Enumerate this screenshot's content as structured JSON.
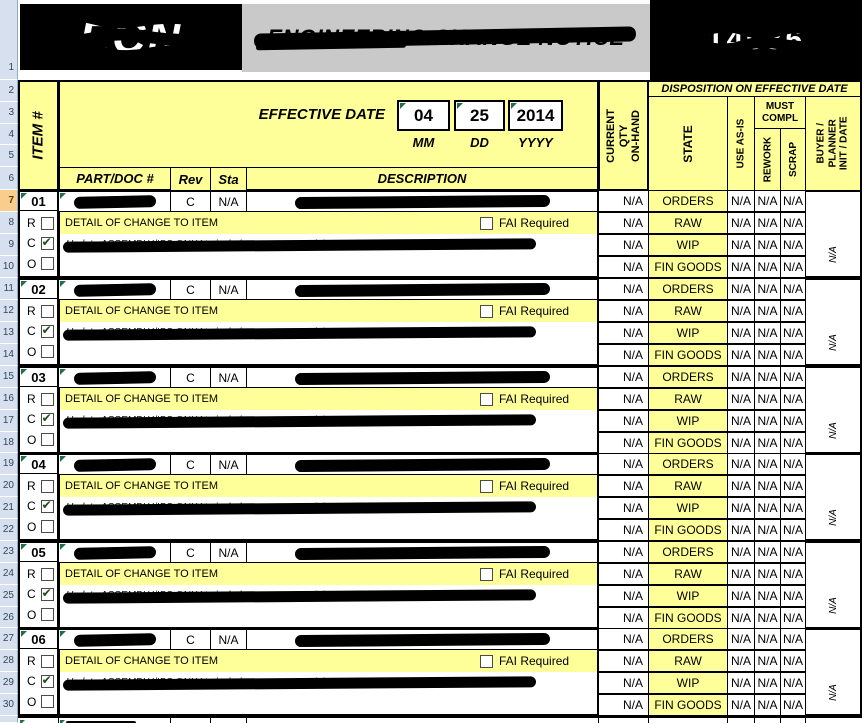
{
  "header": {
    "logo_ghost": "ECN",
    "title_ghost": "ENGINEERING CHANGE NOTICE",
    "number_ghost": "14036",
    "redacted": true
  },
  "form": {
    "item_col_label": "ITEM #",
    "effective_date_label": "EFFECTIVE DATE",
    "date": {
      "mm": "04",
      "dd": "25",
      "yyyy": "2014",
      "mm_label": "MM",
      "dd_label": "DD",
      "yyyy_label": "YYYY"
    },
    "columns": {
      "part": "PART/DOC #",
      "rev": "Rev",
      "sta": "Sta",
      "desc": "DESCRIPTION"
    },
    "disposition": {
      "title": "DISPOSITION ON EFFECTIVE DATE",
      "current_qty_line1": "CURRENT QTY",
      "current_qty_line2": "ON-HAND",
      "state": "STATE",
      "use_as_is": "USE AS-IS",
      "must_compl_line1": "MUST",
      "must_compl_line2": "COMPL",
      "rework": "REWORK",
      "scrap": "SCRAP",
      "buyer_line1": "BUYER /",
      "buyer_line2": "PLANNER",
      "buyer_line3": "INIT / DATE"
    }
  },
  "spreadsheet": {
    "row_numbers": [
      "1",
      "2",
      "3",
      "4",
      "5",
      "6",
      "7",
      "8",
      "9",
      "10",
      "11",
      "12",
      "13",
      "14",
      "15",
      "16",
      "17",
      "18",
      "19",
      "20",
      "21",
      "22",
      "23",
      "24",
      "25",
      "26",
      "27",
      "28",
      "29",
      "30"
    ],
    "active_row": "7"
  },
  "colors": {
    "form_yellow": "#FFFF99",
    "header_gray": "#C9C9C9",
    "row_header_blue": "#D6E0EE",
    "active_row_orange": "#F8CD8E",
    "error_triangle_green": "#1F7145"
  },
  "items": [
    {
      "num": "01",
      "rev": "C",
      "sta": "N/A",
      "detail_label": "DETAIL OF CHANGE TO ITEM",
      "fai_label": "FAI Required",
      "change_ghost": "Update ASSEMBLY/IPS ONLY to include a row to record the results of the in-process inspection",
      "rco": [
        {
          "label": "R",
          "checked": false
        },
        {
          "label": "C",
          "checked": true
        },
        {
          "label": "O",
          "checked": false
        }
      ],
      "rows": [
        {
          "qty": "N/A",
          "state": "ORDERS",
          "use": "N/A",
          "rework": "N/A",
          "scrap": "N/A"
        },
        {
          "qty": "N/A",
          "state": "RAW",
          "use": "N/A",
          "rework": "N/A",
          "scrap": "N/A"
        },
        {
          "qty": "N/A",
          "state": "WIP",
          "use": "N/A",
          "rework": "N/A",
          "scrap": "N/A"
        },
        {
          "qty": "N/A",
          "state": "FIN GOODS",
          "use": "N/A",
          "rework": "N/A",
          "scrap": "N/A"
        }
      ],
      "buyer": "N/A"
    },
    {
      "num": "02",
      "rev": "C",
      "sta": "N/A",
      "detail_label": "DETAIL OF CHANGE TO ITEM",
      "fai_label": "FAI Required",
      "change_ghost": "Update ASSEMBLY/IPS ONLY to include a row to record the results of the in-process inspection",
      "rco": [
        {
          "label": "R",
          "checked": false
        },
        {
          "label": "C",
          "checked": true
        },
        {
          "label": "O",
          "checked": false
        }
      ],
      "rows": [
        {
          "qty": "N/A",
          "state": "ORDERS",
          "use": "N/A",
          "rework": "N/A",
          "scrap": "N/A"
        },
        {
          "qty": "N/A",
          "state": "RAW",
          "use": "N/A",
          "rework": "N/A",
          "scrap": "N/A"
        },
        {
          "qty": "N/A",
          "state": "WIP",
          "use": "N/A",
          "rework": "N/A",
          "scrap": "N/A"
        },
        {
          "qty": "N/A",
          "state": "FIN GOODS",
          "use": "N/A",
          "rework": "N/A",
          "scrap": "N/A"
        }
      ],
      "buyer": "N/A"
    },
    {
      "num": "03",
      "rev": "C",
      "sta": "N/A",
      "detail_label": "DETAIL OF CHANGE TO ITEM",
      "fai_label": "FAI Required",
      "change_ghost": "Update ASSEMBLY/IPS ONLY to include a row to record the results of the in-process inspection",
      "rco": [
        {
          "label": "R",
          "checked": false
        },
        {
          "label": "C",
          "checked": true
        },
        {
          "label": "O",
          "checked": false
        }
      ],
      "rows": [
        {
          "qty": "N/A",
          "state": "ORDERS",
          "use": "N/A",
          "rework": "N/A",
          "scrap": "N/A"
        },
        {
          "qty": "N/A",
          "state": "RAW",
          "use": "N/A",
          "rework": "N/A",
          "scrap": "N/A"
        },
        {
          "qty": "N/A",
          "state": "WIP",
          "use": "N/A",
          "rework": "N/A",
          "scrap": "N/A"
        },
        {
          "qty": "N/A",
          "state": "FIN GOODS",
          "use": "N/A",
          "rework": "N/A",
          "scrap": "N/A"
        }
      ],
      "buyer": "N/A"
    },
    {
      "num": "04",
      "rev": "C",
      "sta": "N/A",
      "detail_label": "DETAIL OF CHANGE TO ITEM",
      "fai_label": "FAI Required",
      "change_ghost": "Update ASSEMBLY/IPS ONLY to include a row to record the results of the in-process inspection",
      "rco": [
        {
          "label": "R",
          "checked": false
        },
        {
          "label": "C",
          "checked": true
        },
        {
          "label": "O",
          "checked": false
        }
      ],
      "rows": [
        {
          "qty": "N/A",
          "state": "ORDERS",
          "use": "N/A",
          "rework": "N/A",
          "scrap": "N/A"
        },
        {
          "qty": "N/A",
          "state": "RAW",
          "use": "N/A",
          "rework": "N/A",
          "scrap": "N/A"
        },
        {
          "qty": "N/A",
          "state": "WIP",
          "use": "N/A",
          "rework": "N/A",
          "scrap": "N/A"
        },
        {
          "qty": "N/A",
          "state": "FIN GOODS",
          "use": "N/A",
          "rework": "N/A",
          "scrap": "N/A"
        }
      ],
      "buyer": "N/A"
    },
    {
      "num": "05",
      "rev": "C",
      "sta": "N/A",
      "detail_label": "DETAIL OF CHANGE TO ITEM",
      "fai_label": "FAI Required",
      "change_ghost": "Update ASSEMBLY/IPS ONLY to include a row to record the results of the in-process inspection",
      "rco": [
        {
          "label": "R",
          "checked": false
        },
        {
          "label": "C",
          "checked": true
        },
        {
          "label": "O",
          "checked": false
        }
      ],
      "rows": [
        {
          "qty": "N/A",
          "state": "ORDERS",
          "use": "N/A",
          "rework": "N/A",
          "scrap": "N/A"
        },
        {
          "qty": "N/A",
          "state": "RAW",
          "use": "N/A",
          "rework": "N/A",
          "scrap": "N/A"
        },
        {
          "qty": "N/A",
          "state": "WIP",
          "use": "N/A",
          "rework": "N/A",
          "scrap": "N/A"
        },
        {
          "qty": "N/A",
          "state": "FIN GOODS",
          "use": "N/A",
          "rework": "N/A",
          "scrap": "N/A"
        }
      ],
      "buyer": "N/A"
    },
    {
      "num": "06",
      "rev": "C",
      "sta": "N/A",
      "detail_label": "DETAIL OF CHANGE TO ITEM",
      "fai_label": "FAI Required",
      "change_ghost": "Update ASSEMBLY/IPS ONLY to include a row to record the results of the in-process inspection",
      "rco": [
        {
          "label": "R",
          "checked": false
        },
        {
          "label": "C",
          "checked": true
        },
        {
          "label": "O",
          "checked": false
        }
      ],
      "rows": [
        {
          "qty": "N/A",
          "state": "ORDERS",
          "use": "N/A",
          "rework": "N/A",
          "scrap": "N/A"
        },
        {
          "qty": "N/A",
          "state": "RAW",
          "use": "N/A",
          "rework": "N/A",
          "scrap": "N/A"
        },
        {
          "qty": "N/A",
          "state": "WIP",
          "use": "N/A",
          "rework": "N/A",
          "scrap": "N/A"
        },
        {
          "qty": "N/A",
          "state": "FIN GOODS",
          "use": "N/A",
          "rework": "N/A",
          "scrap": "N/A"
        }
      ],
      "buyer": "N/A"
    }
  ]
}
